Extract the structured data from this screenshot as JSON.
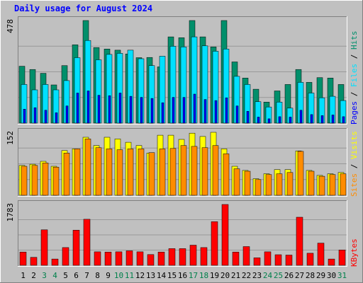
{
  "chart_data": {
    "type": "bar",
    "title": "Daily usage for August 2024",
    "x": [
      "1",
      "2",
      "3",
      "4",
      "5",
      "6",
      "7",
      "8",
      "9",
      "10",
      "11",
      "12",
      "13",
      "14",
      "15",
      "16",
      "17",
      "18",
      "19",
      "20",
      "21",
      "22",
      "23",
      "24",
      "25",
      "26",
      "27",
      "28",
      "29",
      "30",
      "31"
    ],
    "weekend_days": [
      "3",
      "4",
      "10",
      "11",
      "17",
      "18",
      "24",
      "25",
      "31"
    ],
    "panels": [
      {
        "name": "hits-files-pages",
        "ymax_label": "478",
        "ymax": 478,
        "right_label": [
          "Pages",
          "Files",
          "Hits"
        ],
        "series": [
          {
            "name": "Hits",
            "color": "#008f6b",
            "values": [
              265,
              250,
              232,
              178,
              268,
              365,
              478,
              352,
              345,
              340,
              322,
              305,
              306,
              262,
              402,
              398,
              478,
              402,
              355,
              478,
              285,
              210,
              158,
              98,
              150,
              180,
              250,
              190,
              212,
              210,
              180
            ]
          },
          {
            "name": "Files",
            "color": "#00e0ff",
            "values": [
              180,
              155,
              180,
              155,
              198,
              305,
              385,
              295,
              320,
              325,
              340,
              300,
              268,
              312,
              358,
              355,
              402,
              360,
              335,
              345,
              218,
              180,
              100,
              75,
              98,
              70,
              190,
              140,
              118,
              125,
              105
            ]
          },
          {
            "name": "Pages",
            "color": "#0000ff",
            "values": [
              65,
              72,
              60,
              48,
              80,
              140,
              150,
              130,
              128,
              140,
              125,
              120,
              115,
              95,
              120,
              120,
              135,
              110,
              105,
              118,
              80,
              55,
              28,
              20,
              30,
              28,
              60,
              40,
              35,
              38,
              30
            ]
          }
        ]
      },
      {
        "name": "visits-sites",
        "ymax_label": "152",
        "ymax": 152,
        "right_label": [
          "Sites",
          "Visits"
        ],
        "series": [
          {
            "name": "Visits",
            "color": "#ffff00",
            "values": [
              72,
              75,
              82,
              70,
              108,
              112,
              140,
              120,
              140,
              136,
              128,
              120,
              102,
              145,
              145,
              135,
              150,
              142,
              152,
              112,
              70,
              60,
              40,
              52,
              62,
              62,
              107,
              60,
              48,
              52,
              55
            ]
          },
          {
            "name": "Sites",
            "color": "#ff8c00",
            "values": [
              70,
              72,
              78,
              68,
              102,
              112,
              136,
              115,
              112,
              110,
              112,
              112,
              103,
              112,
              113,
              120,
              118,
              115,
              120,
              100,
              64,
              58,
              38,
              50,
              52,
              55,
              106,
              58,
              46,
              50,
              52
            ]
          }
        ]
      },
      {
        "name": "kbytes",
        "ymax_label": "1783",
        "ymax": 1783,
        "right_label": [
          "KBytes"
        ],
        "series": [
          {
            "name": "KBytes",
            "color": "#ff0000",
            "values": [
              390,
              235,
              1040,
              185,
              520,
              1030,
              1350,
              395,
              390,
              395,
              425,
              395,
              315,
              390,
              490,
              490,
              590,
              520,
              1280,
              1783,
              390,
              550,
              220,
              395,
              310,
              300,
              1410,
              355,
              650,
              185,
              450
            ]
          }
        ]
      }
    ]
  },
  "colors": {
    "background": "#c0c0c0",
    "title": "#0000ff",
    "frame_light": "#ffffff",
    "frame_dark": "#808080",
    "grid": "#ffffff",
    "axis_label": "#000000",
    "weekend_label": "#00804b"
  }
}
